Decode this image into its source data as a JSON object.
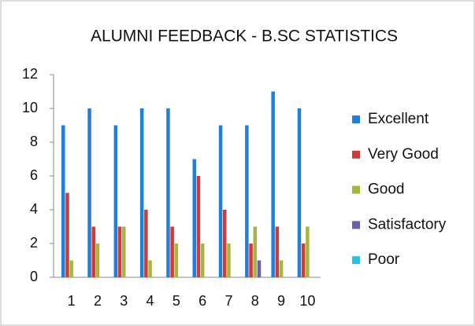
{
  "chart_data": {
    "type": "bar",
    "title": "ALUMNI FEEDBACK - B.SC STATISTICS",
    "categories": [
      "1",
      "2",
      "3",
      "4",
      "5",
      "6",
      "7",
      "8",
      "9",
      "10"
    ],
    "series": [
      {
        "name": "Excellent",
        "color": "#1f7fd9",
        "values": [
          9,
          10,
          9,
          10,
          10,
          7,
          9,
          9,
          11,
          10
        ]
      },
      {
        "name": "Very Good",
        "color": "#d03a3a",
        "values": [
          5,
          3,
          3,
          4,
          3,
          6,
          4,
          2,
          3,
          2
        ]
      },
      {
        "name": "Good",
        "color": "#a8b63a",
        "values": [
          1,
          2,
          3,
          1,
          2,
          2,
          2,
          3,
          1,
          3
        ]
      },
      {
        "name": "Satisfactory",
        "color": "#6a5fa8",
        "values": [
          0,
          0,
          0,
          0,
          0,
          0,
          0,
          1,
          0,
          0
        ]
      },
      {
        "name": "Poor",
        "color": "#2bbfe0",
        "values": [
          0,
          0,
          0,
          0,
          0,
          0,
          0,
          0,
          0,
          0
        ]
      }
    ],
    "ylim": [
      0,
      12
    ],
    "yticks": [
      0,
      2,
      4,
      6,
      8,
      10,
      12
    ],
    "grid": false,
    "legend": "right"
  }
}
